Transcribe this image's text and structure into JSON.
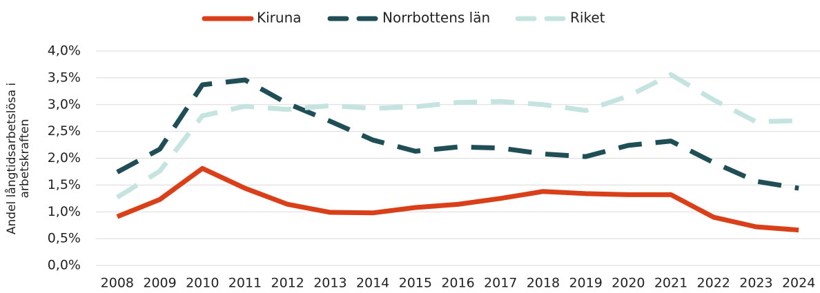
{
  "chart_data": {
    "type": "line",
    "ylabel": "Andel långtidsarbetslösa i arbetskraften",
    "categories": [
      "2008",
      "2009",
      "2010",
      "2011",
      "2012",
      "2013",
      "2014",
      "2015",
      "2016",
      "2017",
      "2018",
      "2019",
      "2020",
      "2021",
      "2022",
      "2023",
      "2024"
    ],
    "series": [
      {
        "name": "Kiruna",
        "color": "#d9401a",
        "dashed": false,
        "values": [
          0.91,
          1.23,
          1.81,
          1.44,
          1.14,
          0.99,
          0.98,
          1.08,
          1.14,
          1.25,
          1.38,
          1.34,
          1.32,
          1.32,
          0.9,
          0.72,
          0.66
        ]
      },
      {
        "name": "Norrbottens län",
        "color": "#1f4e56",
        "dashed": true,
        "values": [
          1.74,
          2.17,
          3.37,
          3.46,
          3.02,
          2.69,
          2.34,
          2.13,
          2.21,
          2.19,
          2.08,
          2.03,
          2.24,
          2.32,
          1.92,
          1.57,
          1.44
        ]
      },
      {
        "name": "Riket",
        "color": "#c5e4e0",
        "dashed": true,
        "values": [
          1.27,
          1.76,
          2.79,
          2.97,
          2.91,
          2.98,
          2.93,
          2.96,
          3.04,
          3.06,
          3.0,
          2.89,
          3.16,
          3.56,
          3.09,
          2.68,
          2.7
        ]
      }
    ],
    "ylim": [
      0,
      4
    ],
    "yticks": [
      {
        "value": 0,
        "label": "0,0%"
      },
      {
        "value": 0.5,
        "label": "0,5%"
      },
      {
        "value": 1,
        "label": "1,0%"
      },
      {
        "value": 1.5,
        "label": "1,5%"
      },
      {
        "value": 2,
        "label": "2,0%"
      },
      {
        "value": 2.5,
        "label": "2,5%"
      },
      {
        "value": 3,
        "label": "3,0%"
      },
      {
        "value": 3.5,
        "label": "3,5%"
      },
      {
        "value": 4,
        "label": "4,0%"
      }
    ],
    "grid": true,
    "legend": "top"
  }
}
